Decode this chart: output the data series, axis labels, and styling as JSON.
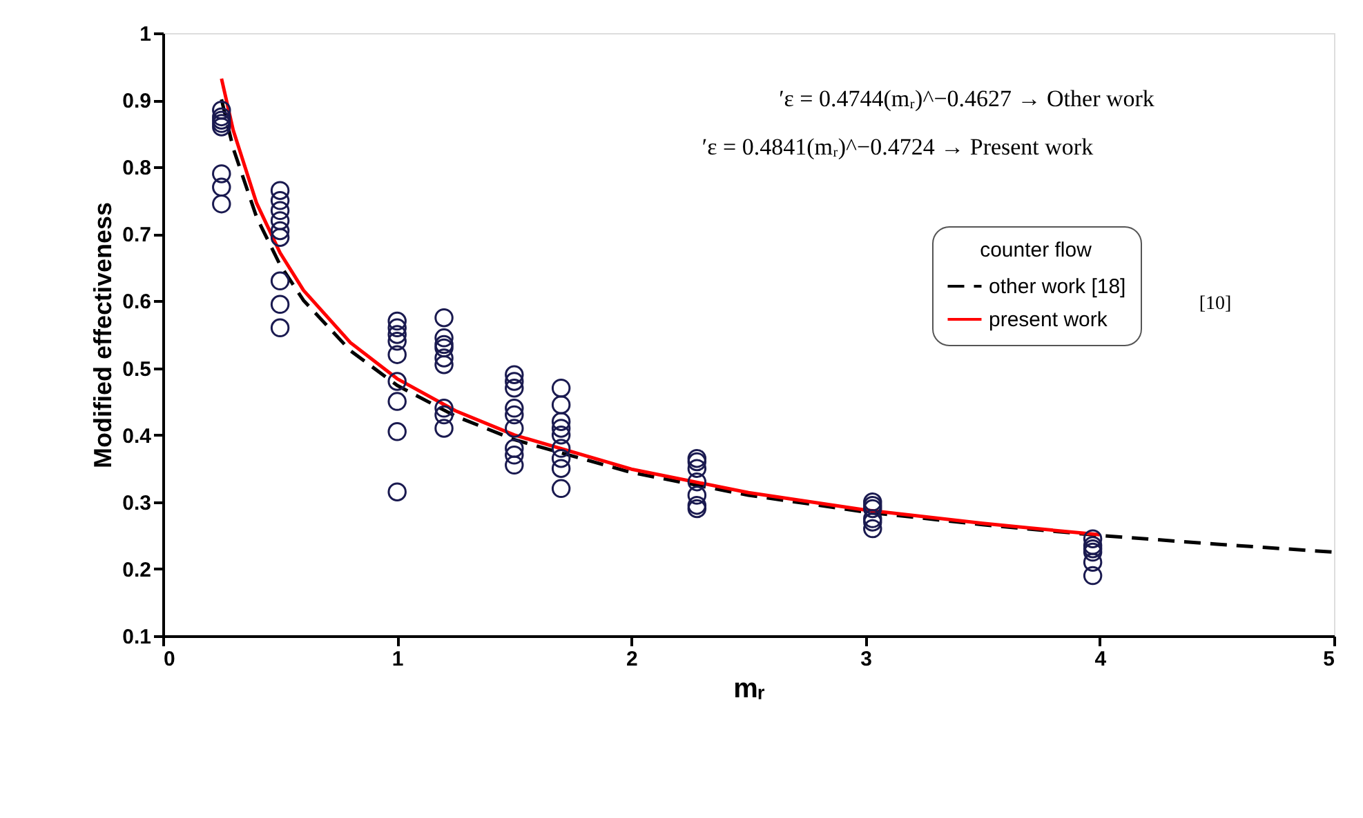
{
  "chart_data": {
    "type": "scatter",
    "xlabel": "mᵣ",
    "ylabel": "Modified effectiveness",
    "xlim": [
      0,
      5
    ],
    "xticks": [
      0,
      1,
      2,
      3,
      4,
      5
    ],
    "ylim": [
      0.1,
      1
    ],
    "yticks": [
      0.1,
      0.2,
      0.3,
      0.4,
      0.5,
      0.6,
      0.7,
      0.8,
      0.9,
      1
    ],
    "grid": false,
    "legend": "top right",
    "legend_title": "counter flow",
    "annotations": [
      "′ε = 0.4744(mᵣ)^−0.4627 → Other work",
      "′ε = 0.4841(mᵣ)^−0.4724 → Present work",
      "[10]"
    ],
    "series": [
      {
        "color": "#1a1a50",
        "marker": "circle",
        "x": [
          0.25,
          0.25,
          0.25,
          0.25,
          0.25,
          0.25,
          0.25,
          0.25,
          0.5,
          0.5,
          0.5,
          0.5,
          0.5,
          0.5,
          0.5,
          0.5,
          0.5,
          1.0,
          1.0,
          1.0,
          1.0,
          1.0,
          1.0,
          1.0,
          1.0,
          1.0,
          1.2,
          1.2,
          1.2,
          1.2,
          1.2,
          1.2,
          1.2,
          1.2,
          1.2,
          1.5,
          1.5,
          1.5,
          1.5,
          1.5,
          1.5,
          1.5,
          1.5,
          1.5,
          1.7,
          1.7,
          1.7,
          1.7,
          1.7,
          1.7,
          1.7,
          1.7,
          1.7,
          2.28,
          2.28,
          2.28,
          2.28,
          2.28,
          2.28,
          2.28,
          3.03,
          3.03,
          3.03,
          3.03,
          3.03,
          3.03,
          3.97,
          3.97,
          3.97,
          3.97,
          3.97,
          3.97
        ],
        "values": [
          0.885,
          0.875,
          0.87,
          0.865,
          0.86,
          0.79,
          0.77,
          0.745,
          0.765,
          0.75,
          0.735,
          0.72,
          0.705,
          0.695,
          0.63,
          0.595,
          0.56,
          0.57,
          0.56,
          0.55,
          0.54,
          0.52,
          0.48,
          0.45,
          0.405,
          0.315,
          0.575,
          0.545,
          0.535,
          0.53,
          0.515,
          0.505,
          0.44,
          0.43,
          0.41,
          0.49,
          0.48,
          0.47,
          0.44,
          0.43,
          0.41,
          0.38,
          0.37,
          0.355,
          0.47,
          0.445,
          0.42,
          0.41,
          0.4,
          0.38,
          0.365,
          0.35,
          0.32,
          0.365,
          0.36,
          0.35,
          0.33,
          0.31,
          0.295,
          0.29,
          0.3,
          0.295,
          0.29,
          0.275,
          0.27,
          0.26,
          0.245,
          0.235,
          0.23,
          0.225,
          0.21,
          0.19
        ]
      },
      {
        "type": "line",
        "name": "other work [18]",
        "color": "#000000",
        "line_style": "dashed",
        "marker": "none",
        "x": [
          0.25,
          0.3,
          0.4,
          0.5,
          0.6,
          0.8,
          1,
          1.25,
          1.5,
          2,
          2.5,
          3,
          3.5,
          4,
          4.5,
          5
        ],
        "values": [
          0.901,
          0.828,
          0.725,
          0.654,
          0.601,
          0.526,
          0.474,
          0.428,
          0.393,
          0.344,
          0.31,
          0.285,
          0.266,
          0.25,
          0.237,
          0.225
        ]
      },
      {
        "type": "line",
        "name": "present work",
        "color": "#ff0000",
        "line_style": "solid",
        "marker": "none",
        "x": [
          0.25,
          0.3,
          0.4,
          0.5,
          0.6,
          0.8,
          1,
          1.25,
          1.5,
          2,
          2.5,
          3,
          3.5,
          4
        ],
        "values": [
          0.932,
          0.855,
          0.746,
          0.672,
          0.616,
          0.538,
          0.484,
          0.436,
          0.4,
          0.349,
          0.314,
          0.288,
          0.268,
          0.251
        ]
      }
    ]
  }
}
